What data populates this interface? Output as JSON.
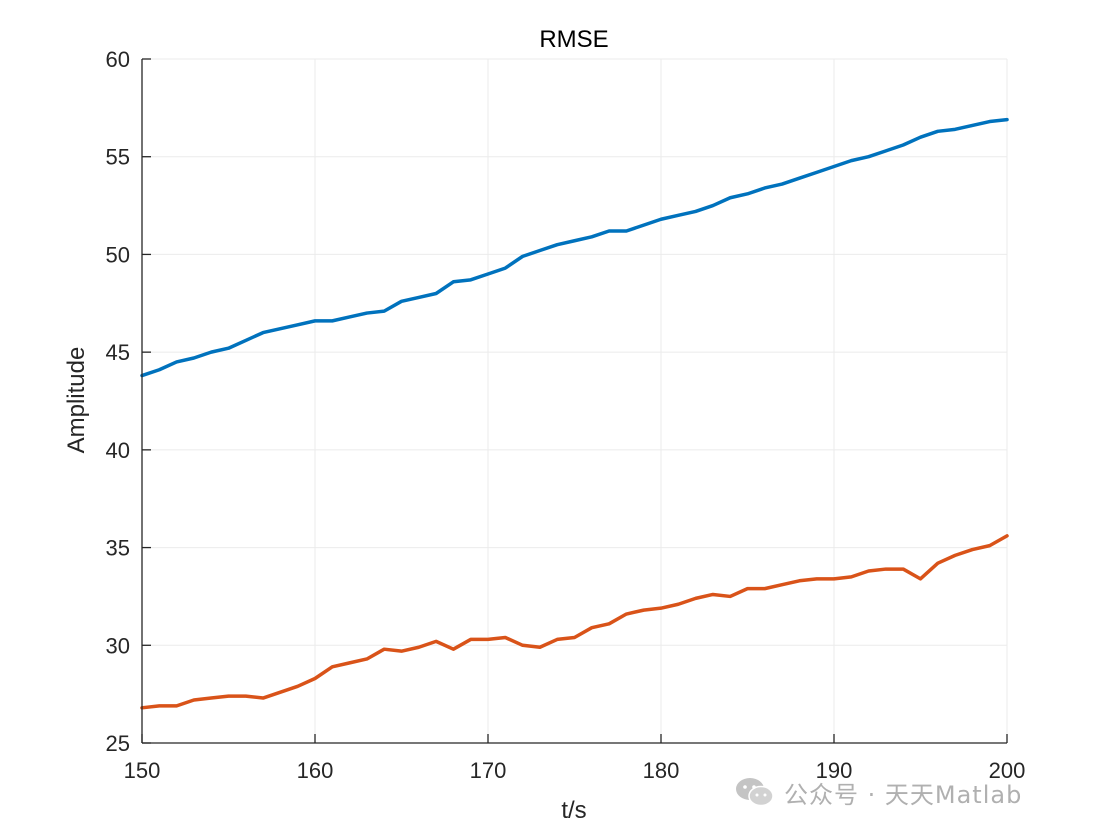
{
  "chart_data": {
    "type": "line",
    "title": "RMSE",
    "xlabel": "t/s",
    "ylabel": "Amplitude",
    "xlim": [
      150,
      200
    ],
    "ylim": [
      25,
      60
    ],
    "xticks": [
      "150",
      "160",
      "170",
      "180",
      "190",
      "200"
    ],
    "yticks": [
      "25",
      "30",
      "35",
      "40",
      "45",
      "50",
      "55",
      "60"
    ],
    "grid": true,
    "x": [
      150,
      151,
      152,
      153,
      154,
      155,
      156,
      157,
      158,
      159,
      160,
      161,
      162,
      163,
      164,
      165,
      166,
      167,
      168,
      169,
      170,
      171,
      172,
      173,
      174,
      175,
      176,
      177,
      178,
      179,
      180,
      181,
      182,
      183,
      184,
      185,
      186,
      187,
      188,
      189,
      190,
      191,
      192,
      193,
      194,
      195,
      196,
      197,
      198,
      199,
      200
    ],
    "series": [
      {
        "color": "#0072BD",
        "values": [
          43.8,
          44.1,
          44.5,
          44.7,
          45.0,
          45.2,
          45.6,
          46.0,
          46.2,
          46.4,
          46.6,
          46.6,
          46.8,
          47.0,
          47.1,
          47.6,
          47.8,
          48.0,
          48.6,
          48.7,
          49.0,
          49.3,
          49.9,
          50.2,
          50.5,
          50.7,
          50.9,
          51.2,
          51.2,
          51.5,
          51.8,
          52.0,
          52.2,
          52.5,
          52.9,
          53.1,
          53.4,
          53.6,
          53.9,
          54.2,
          54.5,
          54.8,
          55.0,
          55.3,
          55.6,
          56.0,
          56.3,
          56.4,
          56.6,
          56.8,
          56.9
        ]
      },
      {
        "color": "#D95319",
        "values": [
          26.8,
          26.9,
          26.9,
          27.2,
          27.3,
          27.4,
          27.4,
          27.3,
          27.6,
          27.9,
          28.3,
          28.9,
          29.1,
          29.3,
          29.8,
          29.7,
          29.9,
          30.2,
          29.8,
          30.3,
          30.3,
          30.4,
          30.0,
          29.9,
          30.3,
          30.4,
          30.9,
          31.1,
          31.6,
          31.8,
          31.9,
          32.1,
          32.4,
          32.6,
          32.5,
          32.9,
          32.9,
          33.1,
          33.3,
          33.4,
          33.4,
          33.5,
          33.8,
          33.9,
          33.9,
          33.4,
          34.2,
          34.6,
          34.9,
          35.1,
          35.6
        ]
      }
    ]
  },
  "watermark": {
    "text": "公众号 · 天天Matlab",
    "icon": "wechat-icon"
  }
}
